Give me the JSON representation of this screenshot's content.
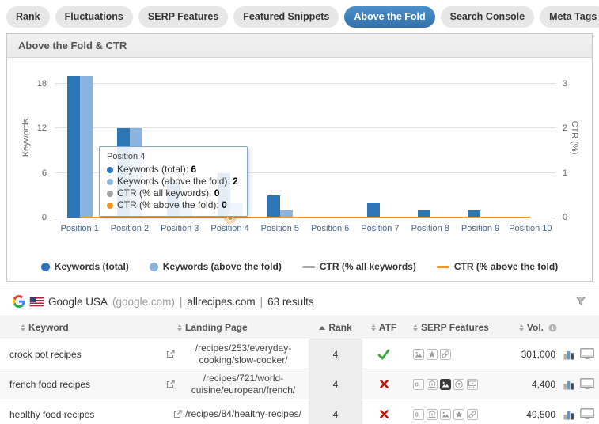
{
  "tabs": [
    {
      "label": "Rank",
      "active": false
    },
    {
      "label": "Fluctuations",
      "active": false
    },
    {
      "label": "SERP Features",
      "active": false
    },
    {
      "label": "Featured Snippets",
      "active": false
    },
    {
      "label": "Above the Fold",
      "active": true
    },
    {
      "label": "Search Console",
      "active": false
    },
    {
      "label": "Meta Tags",
      "active": false
    }
  ],
  "panel": {
    "title": "Above the Fold & CTR"
  },
  "chart_data": {
    "type": "bar+line",
    "categories": [
      "Position 1",
      "Position 2",
      "Position 3",
      "Position 4",
      "Position 5",
      "Position 6",
      "Position 7",
      "Position 8",
      "Position 9",
      "Position 10"
    ],
    "series": [
      {
        "name": "Keywords (total)",
        "type": "bar",
        "color": "#2e75b8",
        "values": [
          19,
          12,
          5,
          6,
          3,
          0,
          2,
          1,
          1,
          0
        ]
      },
      {
        "name": "Keywords (above the fold)",
        "type": "bar",
        "color": "#8ab4dd",
        "values": [
          19,
          12,
          2,
          2,
          1,
          0,
          0,
          0,
          0,
          0
        ]
      },
      {
        "name": "CTR (% all keywords)",
        "type": "line",
        "color": "#a5a5a5",
        "values": [
          0,
          0,
          0,
          0,
          0,
          0,
          0,
          0,
          0,
          0
        ]
      },
      {
        "name": "CTR (% above the fold)",
        "type": "line",
        "color": "#f5941e",
        "values": [
          0,
          0,
          0,
          0,
          0,
          0,
          0,
          0,
          0,
          0
        ]
      }
    ],
    "y_left": {
      "title": "Keywords",
      "ticks": [
        0,
        6,
        12,
        18
      ],
      "max": 20
    },
    "y_right": {
      "title": "CTR (%)",
      "ticks": [
        0,
        1,
        2,
        3
      ],
      "max": 3.3333
    },
    "legend_position": "bottom",
    "grid": true
  },
  "tooltip": {
    "title": "Position 4",
    "category_index": 3,
    "rows": [
      {
        "label": "Keywords (total):",
        "value": "6",
        "color": "#2e75b8"
      },
      {
        "label": "Keywords (above the fold):",
        "value": "2",
        "color": "#8ab4dd"
      },
      {
        "label": "CTR (% all keywords):",
        "value": "0",
        "color": "#a5a5a5"
      },
      {
        "label": "CTR (% above the fold):",
        "value": "0",
        "color": "#f5941e"
      }
    ]
  },
  "table": {
    "source": {
      "engine": "Google USA",
      "domain": "(google.com)",
      "divider": "|",
      "site": "allrecipes.com",
      "results": "63 results"
    },
    "columns": [
      {
        "label": "Keyword",
        "sort": "both"
      },
      {
        "label": "Landing Page",
        "sort": "both"
      },
      {
        "label": "Rank",
        "sort": "asc"
      },
      {
        "label": "ATF",
        "sort": "both"
      },
      {
        "label": "SERP Features",
        "sort": "both"
      },
      {
        "label": "Vol.",
        "sort": "both",
        "info": true
      }
    ],
    "rows": [
      {
        "keyword": "crock pot recipes",
        "landing_page": "/recipes/253/everyday-cooking/slow-cooker/",
        "rank": "4",
        "atf": "check",
        "serp_features": [
          {
            "type": "image",
            "active": false
          },
          {
            "type": "star",
            "active": false
          },
          {
            "type": "link",
            "active": false
          }
        ],
        "volume": "301,000"
      },
      {
        "keyword": "french food recipes",
        "landing_page": "/recipes/721/world-cuisine/european/french/",
        "rank": "4",
        "atf": "cross",
        "serp_features": [
          {
            "type": "snippet",
            "active": false
          },
          {
            "type": "knowledge",
            "active": false
          },
          {
            "type": "image",
            "active": true
          },
          {
            "type": "question",
            "active": false
          },
          {
            "type": "video",
            "active": false
          }
        ],
        "volume": "4,400"
      },
      {
        "keyword": "healthy food recipes",
        "landing_page": "/recipes/84/healthy-recipes/",
        "rank": "4",
        "atf": "cross",
        "serp_features": [
          {
            "type": "snippet",
            "active": false
          },
          {
            "type": "knowledge",
            "active": false
          },
          {
            "type": "image",
            "active": false
          },
          {
            "type": "star",
            "active": false
          },
          {
            "type": "link",
            "active": false
          }
        ],
        "volume": "49,500"
      }
    ]
  },
  "colors": {
    "accent_blue": "#3d7ec1",
    "bar_dark": "#2e75b8",
    "bar_light": "#8ab4dd",
    "line_gray": "#a5a5a5",
    "line_orange": "#f5941e",
    "atf_check": "#3ca43c",
    "atf_cross": "#bf1405"
  }
}
